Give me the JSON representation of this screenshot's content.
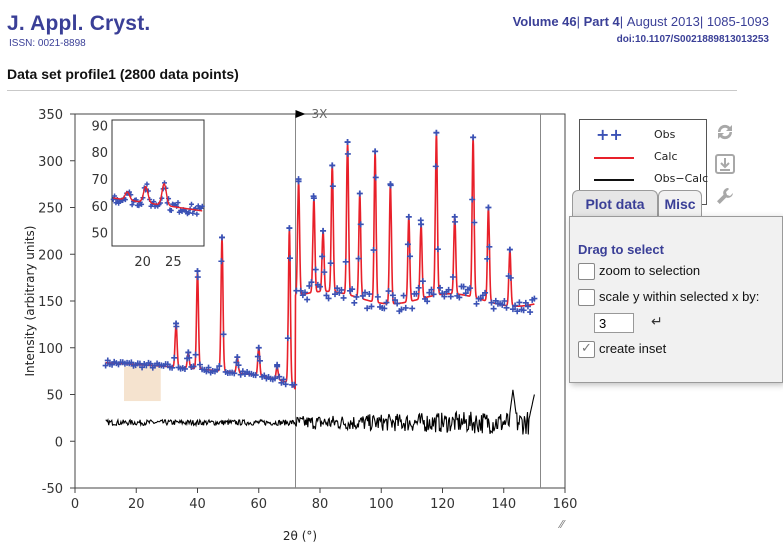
{
  "header": {
    "journal": "J. Appl. Cryst.",
    "issn": "ISSN: 0021-8898",
    "volume": "Volume 46",
    "part": "Part 4",
    "date": "August 2013",
    "pages": "1085-1093",
    "sep": "|",
    "doi": "doi:10.1107/S0021889813013253",
    "dataset_title": "Data set profile1 (2800 data points)"
  },
  "colors": {
    "brand": "#3a3f97",
    "obs": "#3b52b5",
    "calc": "#e8202a",
    "diff": "#000000",
    "selection": "#f3dcc3"
  },
  "legend": {
    "items": [
      {
        "symbol": "++",
        "label": "Obs"
      },
      {
        "symbol": "line",
        "label": "Calc"
      },
      {
        "symbol": "line",
        "label": "Obs−Calc"
      }
    ]
  },
  "toolbar": {
    "icons": [
      "refresh-icon",
      "download-icon",
      "wrench-icon"
    ]
  },
  "tabs": {
    "plot_data": "Plot data",
    "misc": "Misc",
    "active": "Misc"
  },
  "misc_panel": {
    "heading": "Drag to select",
    "zoom_label": "zoom to selection",
    "scale_label": "scale y within selected x by:",
    "scale_value": "3",
    "enter_glyph": "↵",
    "inset_label": "create inset",
    "zoom_checked": false,
    "scale_checked": false,
    "inset_checked": true
  },
  "chart_data": {
    "type": "scatter",
    "xlabel": "2θ (°)",
    "ylabel": "Intensity (arbitrary units)",
    "xlim": [
      0,
      160
    ],
    "ylim": [
      -50,
      350
    ],
    "xticks": [
      0,
      20,
      40,
      60,
      80,
      100,
      120,
      140,
      160
    ],
    "yticks": [
      -50,
      0,
      50,
      100,
      150,
      200,
      250,
      300,
      350
    ],
    "scale_marker": {
      "x": 72,
      "label": "3X"
    },
    "vertical_markers": [
      72,
      152
    ],
    "selection_x": [
      16,
      28
    ],
    "background": {
      "segment1": {
        "x": [
          10,
          72
        ],
        "start": 84,
        "end": 52
      },
      "segment2": {
        "x": [
          72,
          150
        ],
        "start": 155,
        "end": 150
      }
    },
    "peaks": [
      {
        "x": 33,
        "y": 126
      },
      {
        "x": 37,
        "y": 95
      },
      {
        "x": 40,
        "y": 182
      },
      {
        "x": 48,
        "y": 218
      },
      {
        "x": 53,
        "y": 90
      },
      {
        "x": 60,
        "y": 100
      },
      {
        "x": 66,
        "y": 80
      },
      {
        "x": 70,
        "y": 228
      },
      {
        "x": 73,
        "y": 278
      },
      {
        "x": 78,
        "y": 260
      },
      {
        "x": 81,
        "y": 225
      },
      {
        "x": 84,
        "y": 295
      },
      {
        "x": 89,
        "y": 320
      },
      {
        "x": 93,
        "y": 265
      },
      {
        "x": 98,
        "y": 310
      },
      {
        "x": 103,
        "y": 275
      },
      {
        "x": 109,
        "y": 240
      },
      {
        "x": 113,
        "y": 232
      },
      {
        "x": 118,
        "y": 330
      },
      {
        "x": 124,
        "y": 240
      },
      {
        "x": 130,
        "y": 325
      },
      {
        "x": 135,
        "y": 250
      },
      {
        "x": 142,
        "y": 205
      }
    ],
    "difference": {
      "x": [
        10,
        150
      ],
      "baseline": 20,
      "spike_x": 143,
      "spike_y": 55
    },
    "inset": {
      "xlim": [
        15,
        30
      ],
      "ylim": [
        45,
        92
      ],
      "xticks": [
        20,
        25
      ],
      "yticks": [
        50,
        60,
        70,
        80,
        90
      ],
      "base_start": 63,
      "base_end": 58,
      "peaks": [
        {
          "x": 17.5,
          "y": 66
        },
        {
          "x": 20.5,
          "y": 69
        },
        {
          "x": 23.5,
          "y": 71
        }
      ]
    }
  }
}
